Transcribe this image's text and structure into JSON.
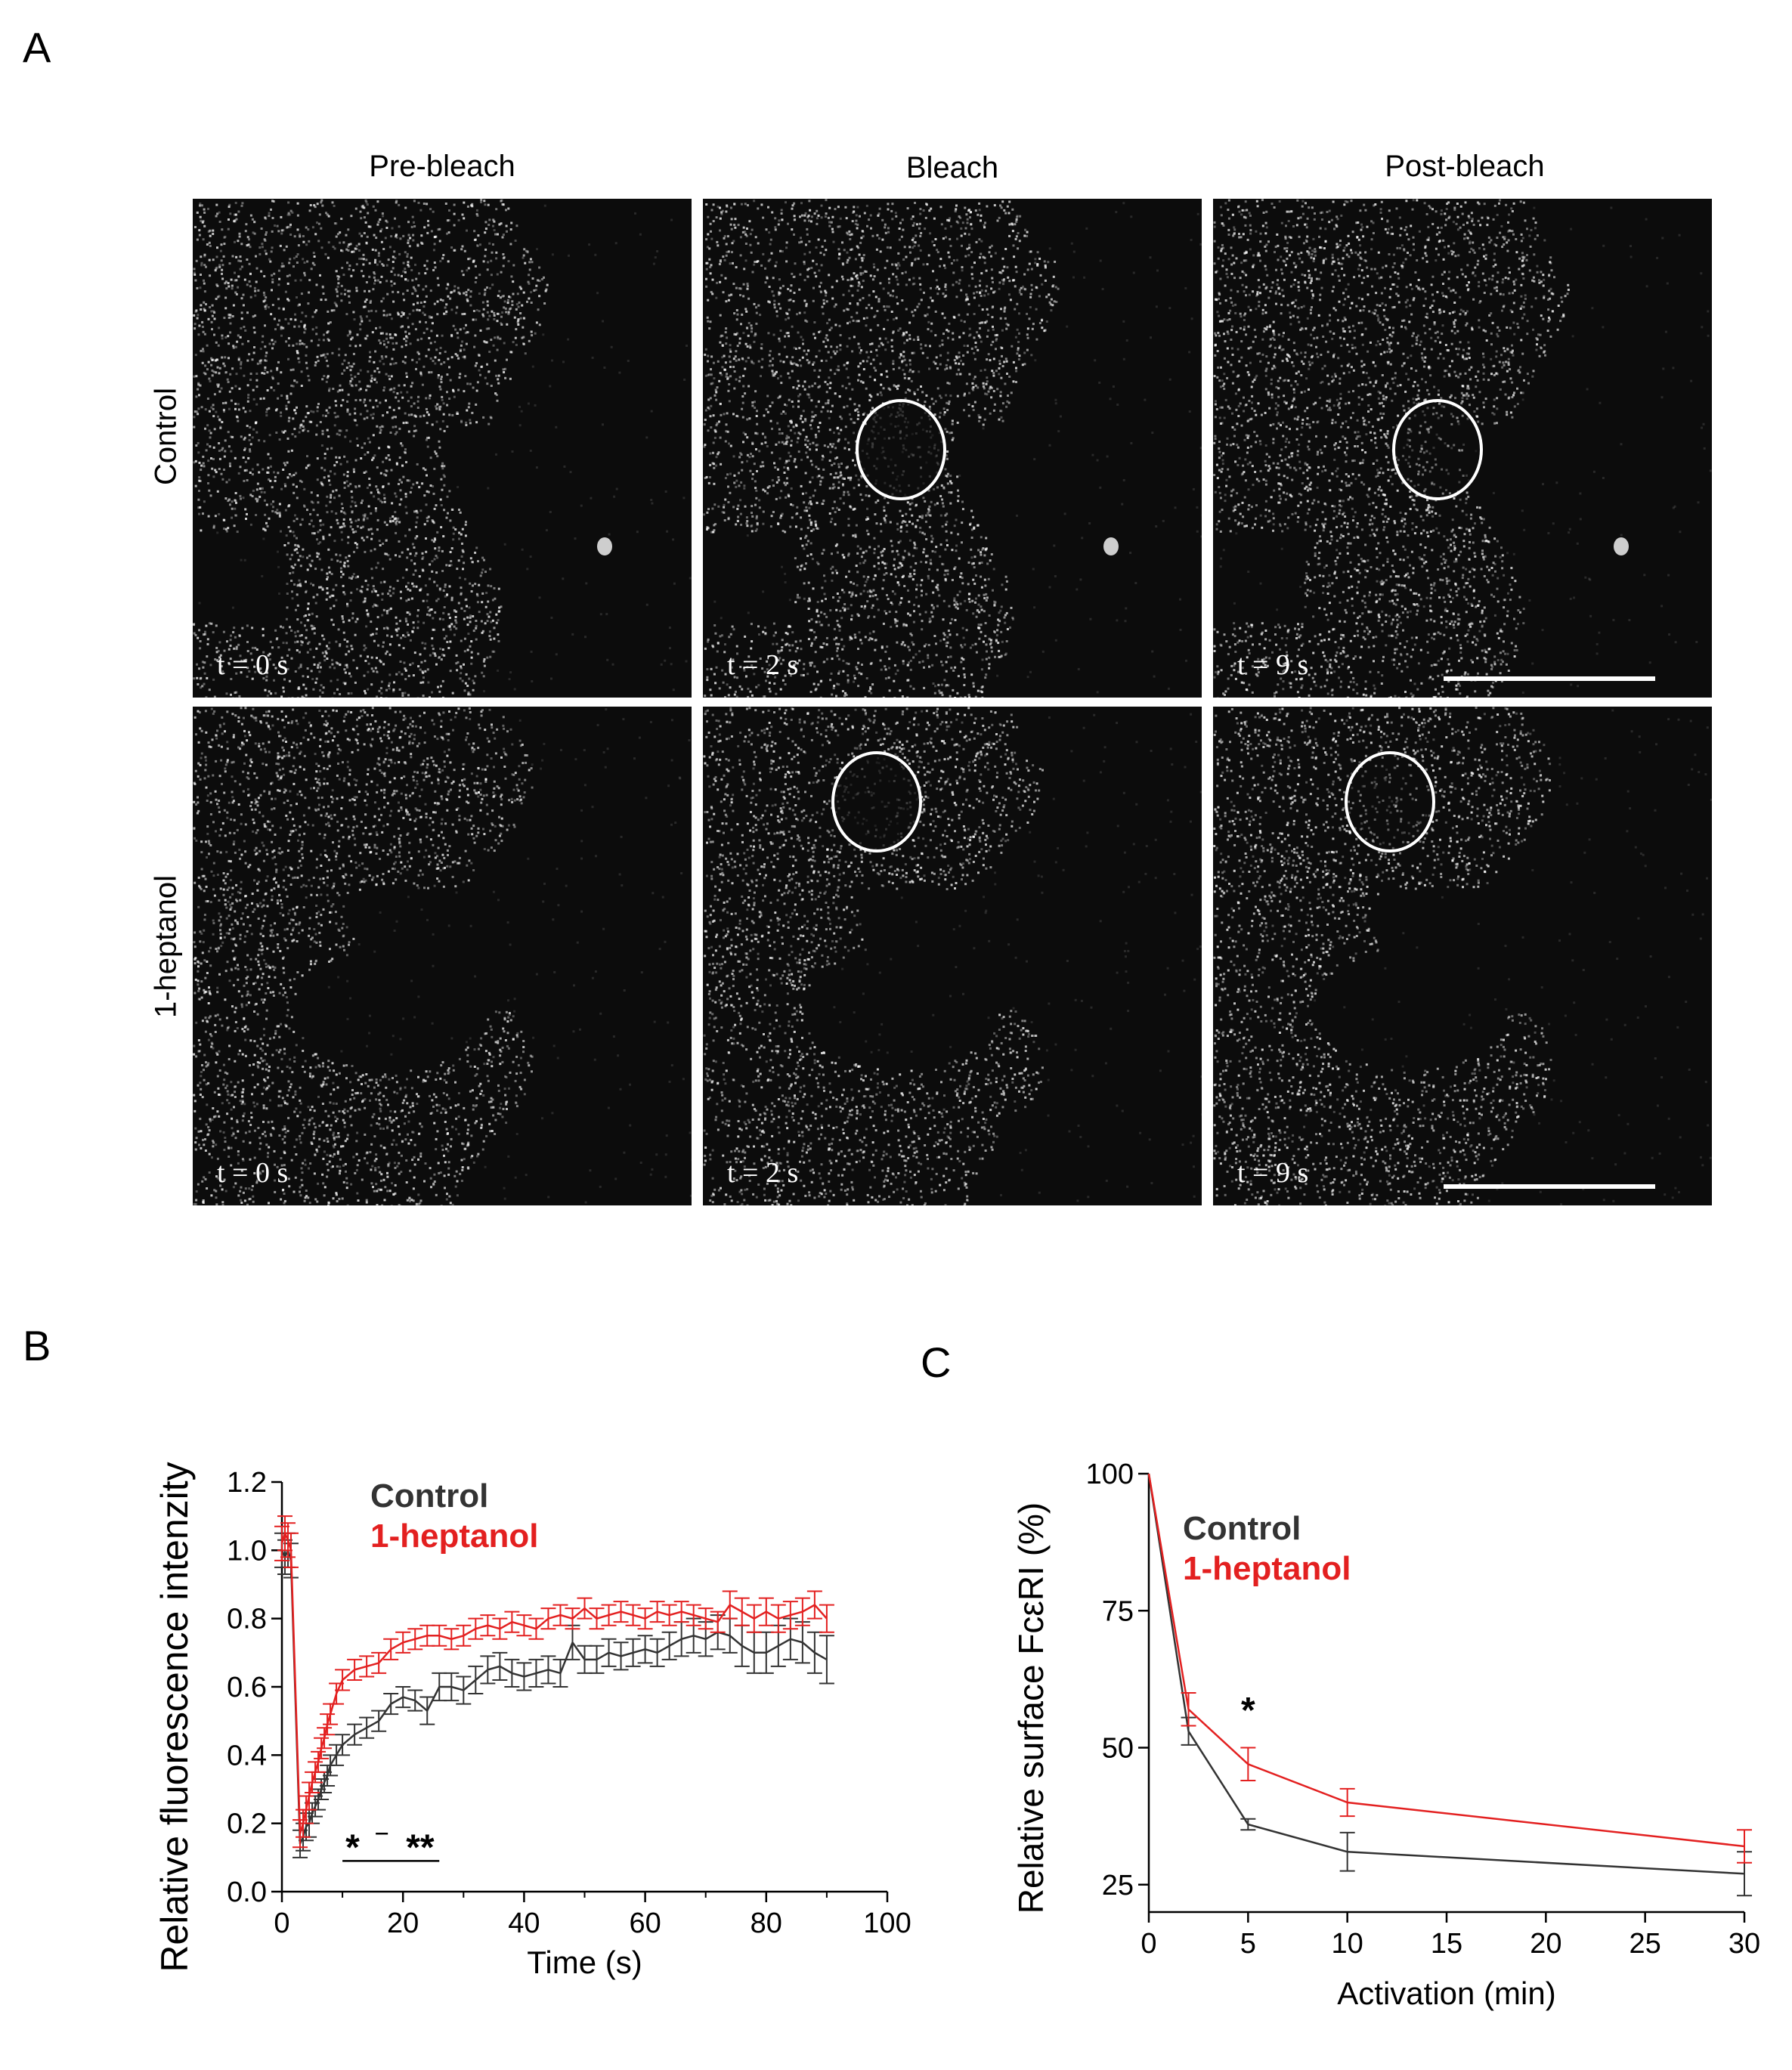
{
  "panelA": {
    "letter": "A",
    "columns": [
      "Pre-bleach",
      "Bleach",
      "Post-bleach"
    ],
    "rows": [
      "Control",
      "1-heptanol"
    ],
    "timestamps": [
      [
        "t = 0 s",
        "t = 2 s",
        "t = 9 s"
      ],
      [
        "t = 0 s",
        "t = 2 s",
        "t = 9 s"
      ]
    ]
  },
  "panelB": {
    "letter": "B",
    "legend": [
      "Control",
      "1-heptanol"
    ],
    "significance": [
      "*",
      "**"
    ],
    "colors": {
      "control": "#333333",
      "heptanol": "#e32020"
    }
  },
  "panelC": {
    "letter": "C",
    "legend": [
      "Control",
      "1-heptanol"
    ],
    "significance": [
      "*"
    ],
    "colors": {
      "control": "#333333",
      "heptanol": "#e32020"
    }
  },
  "chart_data": [
    {
      "type": "line",
      "panel": "B",
      "xlabel": "Time (s)",
      "ylabel": "Relative fluorescence intenzity",
      "xlim": [
        0,
        100
      ],
      "ylim": [
        0,
        1.2
      ],
      "xticks": [
        0,
        20,
        40,
        60,
        80,
        100
      ],
      "yticks": [
        0.0,
        0.2,
        0.4,
        0.6,
        0.8,
        1.0,
        1.2
      ],
      "ytick_labels": [
        "0.0",
        "0.2",
        "0.4",
        "0.6",
        "0.8",
        "1.0",
        "1.2"
      ],
      "legend_position": "top-left",
      "series": [
        {
          "name": "Control",
          "color": "#333333",
          "x": [
            0,
            0.5,
            1,
            1.5,
            3,
            3.5,
            4,
            4.5,
            5,
            5.5,
            6,
            6.5,
            7,
            7.5,
            8,
            9,
            10,
            12,
            14,
            16,
            18,
            20,
            22,
            24,
            26,
            28,
            30,
            32,
            34,
            36,
            38,
            40,
            42,
            44,
            46,
            48,
            50,
            52,
            54,
            56,
            58,
            60,
            62,
            64,
            66,
            68,
            70,
            72,
            74,
            76,
            78,
            80,
            82,
            84,
            86,
            88,
            90
          ],
          "y": [
            1.0,
            0.98,
            1.0,
            0.97,
            0.14,
            0.16,
            0.19,
            0.2,
            0.23,
            0.25,
            0.27,
            0.3,
            0.32,
            0.34,
            0.37,
            0.4,
            0.43,
            0.46,
            0.48,
            0.5,
            0.55,
            0.57,
            0.56,
            0.53,
            0.6,
            0.6,
            0.59,
            0.62,
            0.65,
            0.66,
            0.64,
            0.63,
            0.64,
            0.65,
            0.64,
            0.73,
            0.68,
            0.68,
            0.7,
            0.69,
            0.7,
            0.71,
            0.7,
            0.72,
            0.74,
            0.75,
            0.74,
            0.76,
            0.75,
            0.72,
            0.7,
            0.7,
            0.72,
            0.74,
            0.73,
            0.7,
            0.68
          ],
          "err": [
            0.05,
            0.05,
            0.05,
            0.05,
            0.04,
            0.04,
            0.04,
            0.04,
            0.03,
            0.03,
            0.03,
            0.03,
            0.03,
            0.03,
            0.03,
            0.03,
            0.03,
            0.03,
            0.03,
            0.03,
            0.03,
            0.03,
            0.03,
            0.04,
            0.04,
            0.04,
            0.04,
            0.04,
            0.04,
            0.04,
            0.04,
            0.04,
            0.04,
            0.04,
            0.04,
            0.05,
            0.04,
            0.04,
            0.04,
            0.04,
            0.04,
            0.04,
            0.04,
            0.04,
            0.05,
            0.05,
            0.05,
            0.05,
            0.05,
            0.06,
            0.06,
            0.06,
            0.06,
            0.06,
            0.06,
            0.06,
            0.07
          ]
        },
        {
          "name": "1-heptanol",
          "color": "#e32020",
          "x": [
            0,
            0.5,
            1,
            1.5,
            3,
            3.5,
            4,
            4.5,
            5,
            5.5,
            6,
            6.5,
            7,
            7.5,
            8,
            9,
            10,
            12,
            14,
            16,
            18,
            20,
            22,
            24,
            26,
            28,
            30,
            32,
            34,
            36,
            38,
            40,
            42,
            44,
            46,
            48,
            50,
            52,
            54,
            56,
            58,
            60,
            62,
            64,
            66,
            68,
            70,
            72,
            74,
            76,
            78,
            80,
            82,
            84,
            86,
            88,
            90
          ],
          "y": [
            1.02,
            1.05,
            1.03,
            1.0,
            0.17,
            0.2,
            0.24,
            0.28,
            0.32,
            0.35,
            0.38,
            0.42,
            0.45,
            0.49,
            0.52,
            0.58,
            0.62,
            0.65,
            0.66,
            0.67,
            0.71,
            0.73,
            0.74,
            0.75,
            0.75,
            0.74,
            0.75,
            0.77,
            0.78,
            0.77,
            0.79,
            0.78,
            0.77,
            0.8,
            0.81,
            0.8,
            0.83,
            0.8,
            0.81,
            0.82,
            0.81,
            0.8,
            0.82,
            0.81,
            0.82,
            0.81,
            0.8,
            0.79,
            0.84,
            0.82,
            0.8,
            0.82,
            0.8,
            0.81,
            0.82,
            0.84,
            0.8
          ],
          "err": [
            0.05,
            0.05,
            0.05,
            0.05,
            0.04,
            0.04,
            0.04,
            0.04,
            0.03,
            0.03,
            0.03,
            0.03,
            0.03,
            0.03,
            0.03,
            0.03,
            0.03,
            0.03,
            0.03,
            0.03,
            0.03,
            0.03,
            0.03,
            0.03,
            0.03,
            0.03,
            0.03,
            0.03,
            0.03,
            0.03,
            0.03,
            0.03,
            0.03,
            0.03,
            0.03,
            0.03,
            0.03,
            0.03,
            0.03,
            0.03,
            0.03,
            0.03,
            0.03,
            0.03,
            0.03,
            0.03,
            0.03,
            0.03,
            0.04,
            0.04,
            0.04,
            0.04,
            0.04,
            0.04,
            0.04,
            0.04,
            0.04
          ]
        }
      ],
      "annotation": {
        "text": "* – **",
        "x_range": [
          10,
          26
        ],
        "y": 0.17
      }
    },
    {
      "type": "line",
      "panel": "C",
      "xlabel": "Activation (min)",
      "ylabel": "Relative surface FcεRI (%)",
      "xlim": [
        0,
        30
      ],
      "ylim": [
        20,
        100
      ],
      "xticks": [
        0,
        5,
        10,
        15,
        20,
        25,
        30
      ],
      "yticks": [
        25,
        50,
        75,
        100
      ],
      "legend_position": "top-left",
      "series": [
        {
          "name": "Control",
          "color": "#333333",
          "x": [
            0,
            2,
            5,
            10,
            30
          ],
          "y": [
            100,
            53,
            36,
            31,
            27
          ],
          "err": [
            0,
            2.5,
            1,
            3.5,
            4
          ]
        },
        {
          "name": "1-heptanol",
          "color": "#e32020",
          "x": [
            0,
            2,
            5,
            10,
            30
          ],
          "y": [
            100,
            57,
            47,
            40,
            32
          ],
          "err": [
            0,
            3,
            3,
            2.5,
            3
          ]
        }
      ],
      "annotation": {
        "text": "*",
        "x": 5,
        "y": 55
      }
    }
  ]
}
